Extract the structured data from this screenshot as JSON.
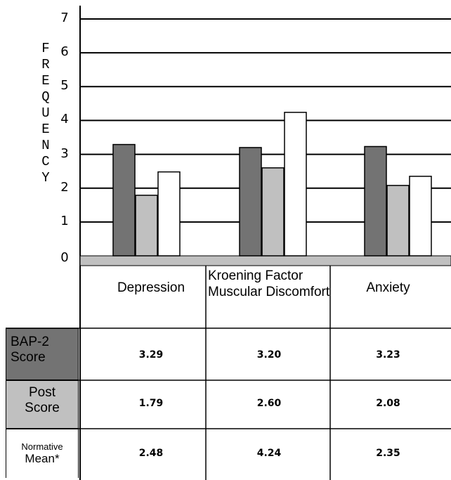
{
  "chart_data": {
    "type": "bar",
    "ylabel": "FREQUENCY",
    "ylim": [
      0,
      7
    ],
    "yticks": [
      "0",
      "1",
      "2",
      "3",
      "4",
      "5",
      "6",
      "7"
    ],
    "categories": [
      "Depression",
      "Kroening Factor Muscular Discomfort",
      "Anxiety"
    ],
    "series": [
      {
        "name": "BAP-2 Score",
        "color": "#737373",
        "values": [
          3.29,
          3.2,
          3.23
        ]
      },
      {
        "name": "Post Score",
        "color": "#c0c0c0",
        "values": [
          1.79,
          2.6,
          2.08
        ]
      },
      {
        "name": "Normative Mean*",
        "color": "#ffffff",
        "values": [
          2.48,
          4.24,
          2.35
        ]
      }
    ],
    "grid": true,
    "table": {
      "rows": [
        {
          "label_lines": [
            "BAP-2",
            "Score"
          ],
          "cells": [
            "3.29",
            "3.20",
            "3.23"
          ]
        },
        {
          "label_lines": [
            "Post",
            "Score"
          ],
          "cells": [
            "1.79",
            "2.60",
            "2.08"
          ]
        },
        {
          "label_lines": [
            "Normative",
            "Mean*"
          ],
          "cells": [
            "2.48",
            "4.24",
            "2.35"
          ]
        }
      ]
    }
  }
}
